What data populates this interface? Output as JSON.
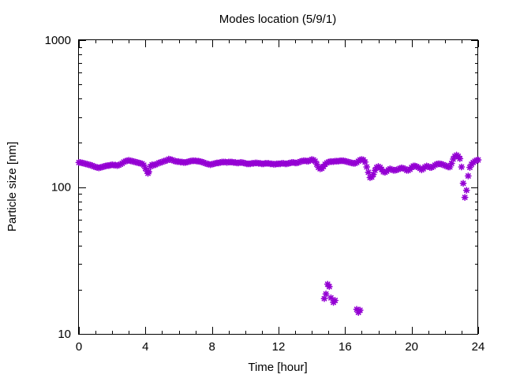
{
  "chart_data": {
    "type": "scatter",
    "title": "Modes location (5/9/1)",
    "xlabel": "Time [hour]",
    "ylabel": "Particle size [nm]",
    "xlim": [
      0,
      24
    ],
    "ylim": [
      10,
      1000
    ],
    "yscale": "log",
    "xticks": [
      0,
      4,
      8,
      12,
      16,
      20,
      24
    ],
    "xtick_labels": [
      "0",
      "4",
      "8",
      "12",
      "16",
      "20",
      "24"
    ],
    "yticks": [
      10,
      100,
      1000
    ],
    "ytick_labels": [
      "10",
      "100",
      "1000"
    ],
    "grid": false,
    "legend": "none",
    "marker_color": "#9400d3",
    "marker": "star",
    "series": [
      {
        "points": [
          [
            0.0,
            147
          ],
          [
            0.1,
            147
          ],
          [
            0.2,
            146
          ],
          [
            0.3,
            145
          ],
          [
            0.4,
            144
          ],
          [
            0.5,
            143
          ],
          [
            0.6,
            142
          ],
          [
            0.7,
            141
          ],
          [
            0.8,
            140
          ],
          [
            0.9,
            138
          ],
          [
            1.0,
            137
          ],
          [
            1.1,
            136
          ],
          [
            1.2,
            135
          ],
          [
            1.3,
            136
          ],
          [
            1.4,
            137
          ],
          [
            1.5,
            138
          ],
          [
            1.6,
            139
          ],
          [
            1.7,
            140
          ],
          [
            1.8,
            140
          ],
          [
            1.9,
            141
          ],
          [
            2.0,
            142
          ],
          [
            2.1,
            141
          ],
          [
            2.2,
            141
          ],
          [
            2.3,
            140
          ],
          [
            2.4,
            141
          ],
          [
            2.5,
            143
          ],
          [
            2.6,
            145
          ],
          [
            2.7,
            148
          ],
          [
            2.8,
            150
          ],
          [
            2.9,
            151
          ],
          [
            3.0,
            152
          ],
          [
            3.1,
            151
          ],
          [
            3.2,
            150
          ],
          [
            3.3,
            149
          ],
          [
            3.4,
            148
          ],
          [
            3.5,
            147
          ],
          [
            3.6,
            146
          ],
          [
            3.7,
            145
          ],
          [
            3.8,
            144
          ],
          [
            3.9,
            141
          ],
          [
            4.0,
            134
          ],
          [
            4.1,
            128
          ],
          [
            4.15,
            124
          ],
          [
            4.2,
            127
          ],
          [
            4.3,
            138
          ],
          [
            4.4,
            142
          ],
          [
            4.5,
            141
          ],
          [
            4.6,
            142
          ],
          [
            4.7,
            144
          ],
          [
            4.8,
            146
          ],
          [
            4.9,
            147
          ],
          [
            5.0,
            148
          ],
          [
            5.1,
            150
          ],
          [
            5.2,
            151
          ],
          [
            5.3,
            152
          ],
          [
            5.4,
            155
          ],
          [
            5.5,
            154
          ],
          [
            5.6,
            153
          ],
          [
            5.7,
            151
          ],
          [
            5.8,
            150
          ],
          [
            5.9,
            149
          ],
          [
            6.0,
            149
          ],
          [
            6.1,
            148
          ],
          [
            6.2,
            148
          ],
          [
            6.3,
            147
          ],
          [
            6.4,
            147
          ],
          [
            6.5,
            148
          ],
          [
            6.6,
            149
          ],
          [
            6.7,
            150
          ],
          [
            6.8,
            151
          ],
          [
            6.9,
            151
          ],
          [
            7.0,
            151
          ],
          [
            7.1,
            150
          ],
          [
            7.2,
            150
          ],
          [
            7.3,
            149
          ],
          [
            7.4,
            148
          ],
          [
            7.5,
            147
          ],
          [
            7.6,
            145
          ],
          [
            7.7,
            144
          ],
          [
            7.8,
            143
          ],
          [
            7.9,
            142
          ],
          [
            8.0,
            143
          ],
          [
            8.1,
            144
          ],
          [
            8.2,
            145
          ],
          [
            8.3,
            146
          ],
          [
            8.4,
            146
          ],
          [
            8.5,
            147
          ],
          [
            8.6,
            148
          ],
          [
            8.7,
            148
          ],
          [
            8.8,
            148
          ],
          [
            8.9,
            147
          ],
          [
            9.0,
            148
          ],
          [
            9.1,
            148
          ],
          [
            9.2,
            148
          ],
          [
            9.3,
            147
          ],
          [
            9.4,
            147
          ],
          [
            9.5,
            146
          ],
          [
            9.6,
            146
          ],
          [
            9.7,
            147
          ],
          [
            9.8,
            147
          ],
          [
            9.9,
            146
          ],
          [
            10.0,
            145
          ],
          [
            10.1,
            144
          ],
          [
            10.2,
            144
          ],
          [
            10.3,
            144
          ],
          [
            10.4,
            145
          ],
          [
            10.5,
            145
          ],
          [
            10.6,
            146
          ],
          [
            10.7,
            146
          ],
          [
            10.8,
            145
          ],
          [
            10.9,
            145
          ],
          [
            11.0,
            144
          ],
          [
            11.1,
            144
          ],
          [
            11.2,
            145
          ],
          [
            11.3,
            145
          ],
          [
            11.4,
            145
          ],
          [
            11.5,
            144
          ],
          [
            11.6,
            144
          ],
          [
            11.7,
            143
          ],
          [
            11.8,
            143
          ],
          [
            11.9,
            144
          ],
          [
            12.0,
            144
          ],
          [
            12.1,
            144
          ],
          [
            12.2,
            145
          ],
          [
            12.3,
            145
          ],
          [
            12.4,
            144
          ],
          [
            12.5,
            144
          ],
          [
            12.6,
            145
          ],
          [
            12.7,
            146
          ],
          [
            12.8,
            147
          ],
          [
            12.9,
            147
          ],
          [
            13.0,
            146
          ],
          [
            13.1,
            146
          ],
          [
            13.2,
            147
          ],
          [
            13.3,
            149
          ],
          [
            13.4,
            150
          ],
          [
            13.5,
            151
          ],
          [
            13.6,
            151
          ],
          [
            13.7,
            150
          ],
          [
            13.8,
            150
          ],
          [
            13.9,
            152
          ],
          [
            14.0,
            154
          ],
          [
            14.1,
            153
          ],
          [
            14.2,
            150
          ],
          [
            14.3,
            143
          ],
          [
            14.4,
            136
          ],
          [
            14.5,
            133
          ],
          [
            14.6,
            134
          ],
          [
            14.7,
            138
          ],
          [
            14.8,
            143
          ],
          [
            14.9,
            146
          ],
          [
            15.0,
            148
          ],
          [
            15.1,
            149
          ],
          [
            15.2,
            149
          ],
          [
            15.3,
            149
          ],
          [
            15.4,
            150
          ],
          [
            15.5,
            150
          ],
          [
            15.6,
            150
          ],
          [
            15.7,
            151
          ],
          [
            15.8,
            151
          ],
          [
            15.9,
            151
          ],
          [
            16.0,
            150
          ],
          [
            16.1,
            149
          ],
          [
            16.2,
            148
          ],
          [
            16.3,
            147
          ],
          [
            16.4,
            146
          ],
          [
            16.5,
            145
          ],
          [
            16.6,
            145
          ],
          [
            16.7,
            147
          ],
          [
            16.8,
            150
          ],
          [
            16.9,
            153
          ],
          [
            17.0,
            154
          ],
          [
            17.1,
            153
          ],
          [
            17.2,
            148
          ],
          [
            17.3,
            137
          ],
          [
            17.4,
            126
          ],
          [
            17.5,
            116
          ],
          [
            17.6,
            117
          ],
          [
            17.7,
            122
          ],
          [
            17.8,
            130
          ],
          [
            17.9,
            136
          ],
          [
            18.0,
            138
          ],
          [
            18.1,
            136
          ],
          [
            18.2,
            132
          ],
          [
            18.3,
            127
          ],
          [
            18.4,
            126
          ],
          [
            18.5,
            128
          ],
          [
            18.6,
            131
          ],
          [
            18.7,
            133
          ],
          [
            18.8,
            132
          ],
          [
            18.9,
            130
          ],
          [
            19.0,
            130
          ],
          [
            19.1,
            131
          ],
          [
            19.2,
            132
          ],
          [
            19.3,
            134
          ],
          [
            19.4,
            135
          ],
          [
            19.5,
            134
          ],
          [
            19.6,
            133
          ],
          [
            19.7,
            130
          ],
          [
            19.8,
            130
          ],
          [
            19.9,
            132
          ],
          [
            20.0,
            136
          ],
          [
            20.1,
            139
          ],
          [
            20.2,
            139
          ],
          [
            20.3,
            138
          ],
          [
            20.4,
            136
          ],
          [
            20.5,
            134
          ],
          [
            20.6,
            131
          ],
          [
            20.7,
            133
          ],
          [
            20.8,
            137
          ],
          [
            20.9,
            139
          ],
          [
            21.0,
            138
          ],
          [
            21.1,
            136
          ],
          [
            21.2,
            136
          ],
          [
            21.3,
            138
          ],
          [
            21.4,
            141
          ],
          [
            21.5,
            143
          ],
          [
            21.6,
            144
          ],
          [
            21.7,
            144
          ],
          [
            21.8,
            143
          ],
          [
            21.9,
            142
          ],
          [
            22.0,
            140
          ],
          [
            22.1,
            139
          ],
          [
            22.2,
            137
          ],
          [
            22.3,
            137
          ],
          [
            22.4,
            145
          ],
          [
            22.5,
            155
          ],
          [
            22.6,
            162
          ],
          [
            22.7,
            165
          ],
          [
            22.8,
            162
          ],
          [
            22.9,
            156
          ],
          [
            23.0,
            137
          ],
          [
            23.1,
            106
          ],
          [
            23.2,
            85
          ],
          [
            23.3,
            95
          ],
          [
            23.4,
            119
          ],
          [
            23.5,
            136
          ],
          [
            23.6,
            143
          ],
          [
            23.7,
            147
          ],
          [
            23.8,
            150
          ],
          [
            23.9,
            152
          ],
          [
            24.0,
            153
          ]
        ]
      },
      {
        "points": [
          [
            14.75,
            17.4
          ],
          [
            14.85,
            18.7
          ],
          [
            14.95,
            21.8
          ],
          [
            15.05,
            21.0
          ],
          [
            15.15,
            17.6
          ],
          [
            15.3,
            16.4
          ],
          [
            15.4,
            16.9
          ],
          [
            16.7,
            14.7
          ],
          [
            16.8,
            14.0
          ],
          [
            16.9,
            14.5
          ]
        ]
      }
    ]
  }
}
